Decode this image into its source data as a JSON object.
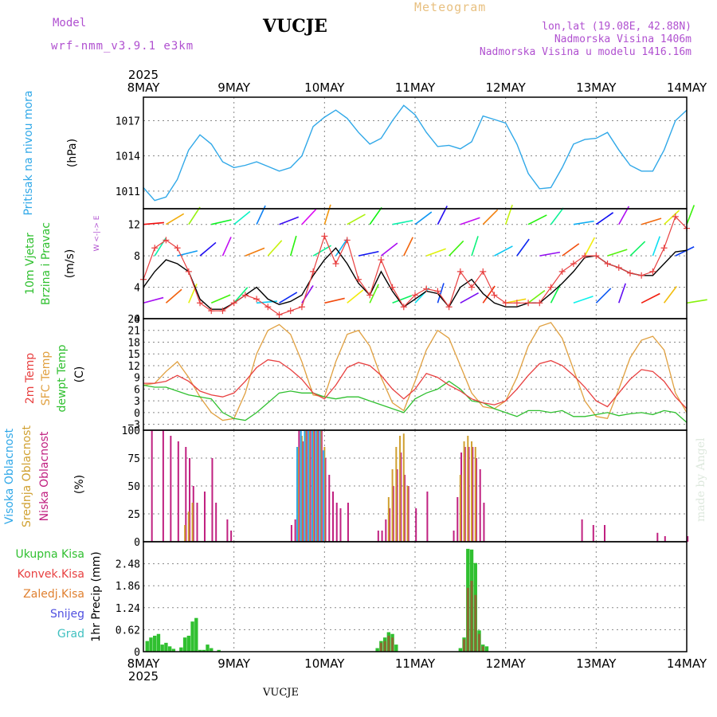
{
  "header": {
    "title": "VUCJE",
    "meteogram_label": "Meteogram",
    "model_label": "Model",
    "model_name": "wrf-nmm_v3.9.1  e3km",
    "lonlat": "lon,lat (19.08E, 42.88N)",
    "altitude": "Nadmorska Visina 1406m",
    "model_altitude": "Nadmorska Visina u modelu 1416.16m"
  },
  "footer": {
    "station": "VUCJE",
    "credit": "made by Angel"
  },
  "colors": {
    "pressure": "#30a8e8",
    "wind_speed": "#000000",
    "gust": "#e84040",
    "temp2m": "#e84040",
    "sfc_temp": "#e0a040",
    "dewpt": "#30c030",
    "cloud_high": "#30a8e8",
    "cloud_mid": "#d0a030",
    "cloud_low": "#c02080",
    "precip_total": "#30c030",
    "precip_conv": "#e84040",
    "precip_large": "#e08030",
    "snow": "#5050e0",
    "hail": "#40c0c0"
  },
  "chart_data": [
    {
      "type": "line",
      "panel": "pressure",
      "title": "Pritisak na nivou mora",
      "ylabel": "(hPa)",
      "year_label": "2025",
      "x_ticks": [
        "8MAY",
        "9MAY",
        "10MAY",
        "11MAY",
        "12MAY",
        "13MAY",
        "14MAY"
      ],
      "ylim": [
        1009.5,
        1019
      ],
      "y_ticks": [
        1011,
        1014,
        1017
      ],
      "x_hours": [
        0,
        3,
        6,
        9,
        12,
        15,
        18,
        21,
        24,
        27,
        30,
        33,
        36,
        39,
        42,
        45,
        48,
        51,
        54,
        57,
        60,
        63,
        66,
        69,
        72,
        75,
        78,
        81,
        84,
        87,
        90,
        93,
        96,
        99,
        102,
        105,
        108,
        111,
        114,
        117,
        120,
        123,
        126,
        129,
        132,
        135,
        138,
        141,
        144
      ],
      "values": [
        1011.3,
        1010.2,
        1010.5,
        1012,
        1014.5,
        1015.8,
        1015,
        1013.5,
        1013,
        1013.2,
        1013.5,
        1013.1,
        1012.7,
        1013,
        1014,
        1016.5,
        1017.3,
        1017.9,
        1017.2,
        1016,
        1015,
        1015.5,
        1017,
        1018.3,
        1017.5,
        1016,
        1014.8,
        1014.9,
        1014.6,
        1015.2,
        1017.4,
        1017.1,
        1016.8,
        1015,
        1012.5,
        1011.2,
        1011.3,
        1013,
        1015,
        1015.4,
        1015.5,
        1016,
        1014.5,
        1013.2,
        1012.7,
        1012.7,
        1014.5,
        1017,
        1017.9
      ]
    },
    {
      "type": "line",
      "panel": "wind",
      "title": "10m Vjetar",
      "subtitle": "Brzina i Pravac",
      "ylabel": "(m/s)",
      "compass_label": "W <-|-> E",
      "ylim": [
        0,
        14
      ],
      "y_ticks": [
        0,
        4,
        8,
        12
      ],
      "x_hours": [
        0,
        3,
        6,
        9,
        12,
        15,
        18,
        21,
        24,
        27,
        30,
        33,
        36,
        39,
        42,
        45,
        48,
        51,
        54,
        57,
        60,
        63,
        66,
        69,
        72,
        75,
        78,
        81,
        84,
        87,
        90,
        93,
        96,
        99,
        102,
        105,
        108,
        111,
        114,
        117,
        120,
        123,
        126,
        129,
        132,
        135,
        138,
        141,
        144
      ],
      "series": [
        {
          "name": "Wind speed",
          "values": [
            4,
            6,
            7.5,
            7,
            6,
            2.5,
            1.2,
            1.2,
            2,
            3,
            4,
            2.5,
            1.8,
            2.2,
            3,
            5.5,
            7.5,
            9,
            7,
            4.5,
            3,
            6,
            3.5,
            1.5,
            2.5,
            3.5,
            3.2,
            1.5,
            4,
            5,
            3.2,
            2,
            1.5,
            1.5,
            2,
            2,
            3.2,
            4.5,
            6,
            7.8,
            8,
            7,
            6.5,
            5.8,
            5.5,
            5.5,
            7,
            8.5,
            8.7
          ]
        },
        {
          "name": "Gust",
          "values": [
            5,
            9,
            10,
            9,
            6,
            2,
            1,
            1,
            2,
            3,
            2.5,
            1.5,
            0.5,
            1,
            1.5,
            6,
            10.5,
            7,
            10,
            5,
            3,
            7.5,
            4,
            1.5,
            3,
            3.8,
            3.5,
            1.5,
            6,
            4,
            6,
            3,
            2,
            2,
            2,
            2,
            4,
            6,
            7,
            8,
            8,
            7,
            6.5,
            5.8,
            5.5,
            6,
            9,
            13,
            11.5
          ]
        }
      ]
    },
    {
      "type": "line",
      "panel": "temperature",
      "title": "2m Temp",
      "subtitle": "SFC Temp",
      "subtitle2": "dewpt Temp",
      "ylabel": "(C)",
      "ylim": [
        -4.5,
        24
      ],
      "y_ticks": [
        -3,
        0,
        3,
        6,
        9,
        12,
        15,
        18,
        21,
        24
      ],
      "x_hours": [
        0,
        3,
        6,
        9,
        12,
        15,
        18,
        21,
        24,
        27,
        30,
        33,
        36,
        39,
        42,
        45,
        48,
        51,
        54,
        57,
        60,
        63,
        66,
        69,
        72,
        75,
        78,
        81,
        84,
        87,
        90,
        93,
        96,
        99,
        102,
        105,
        108,
        111,
        114,
        117,
        120,
        123,
        126,
        129,
        132,
        135,
        138,
        141,
        144
      ],
      "series": [
        {
          "name": "2m Temp",
          "values": [
            7.5,
            7.5,
            8,
            9.5,
            8,
            5.5,
            4.5,
            4,
            5,
            8,
            11.5,
            13.5,
            13,
            11,
            8.5,
            5,
            3.5,
            7,
            11.5,
            12.8,
            12,
            9.5,
            6,
            3.5,
            6,
            10,
            9,
            7,
            5.5,
            3.5,
            2.5,
            2,
            3,
            6,
            9.5,
            12.5,
            13.3,
            12,
            9.5,
            6.5,
            3,
            1.5,
            5,
            8.5,
            11,
            10.5,
            8,
            4,
            1
          ]
        },
        {
          "name": "SFC Temp",
          "values": [
            7,
            7.5,
            10.5,
            13,
            9,
            4,
            0,
            -2,
            -1.5,
            5,
            15,
            21,
            22.5,
            20,
            13,
            4.5,
            4,
            13,
            20,
            21,
            17,
            9,
            2.5,
            0.5,
            8,
            16,
            21,
            19,
            12,
            5,
            1.5,
            1,
            3,
            9,
            17,
            22,
            23,
            19,
            11,
            3,
            -1,
            -1.5,
            6,
            14,
            18.5,
            19.5,
            16,
            5,
            0
          ]
        },
        {
          "name": "dewpt Temp",
          "values": [
            7,
            6.5,
            6.5,
            5.5,
            4.5,
            4,
            3.5,
            0,
            -1.5,
            -2,
            0,
            2.5,
            5,
            5.5,
            5,
            5,
            4,
            3.5,
            4,
            4,
            3,
            2,
            1,
            0,
            3.5,
            5,
            6,
            8,
            6,
            3,
            2.5,
            1,
            0,
            -1,
            0.5,
            0.5,
            0,
            0.5,
            -1,
            -1,
            -0.5,
            0,
            -0.8,
            -0.3,
            0,
            -0.5,
            0.5,
            0,
            -2.5
          ]
        }
      ]
    },
    {
      "type": "bar",
      "panel": "clouds",
      "title": "Visoka Oblacnost",
      "subtitle": "Srednja Oblacnost",
      "subtitle2": "Niska Oblacnost",
      "ylabel": "(%)",
      "ylim": [
        0,
        100
      ],
      "y_ticks": [
        0,
        25,
        50,
        75,
        100
      ],
      "series": [
        {
          "name": "Niska Oblacnost",
          "points": [
            [
              2,
              100
            ],
            [
              5,
              100
            ],
            [
              7,
              95
            ],
            [
              9,
              90
            ],
            [
              11,
              85
            ],
            [
              12,
              75
            ],
            [
              13,
              50
            ],
            [
              14,
              35
            ],
            [
              16,
              45
            ],
            [
              18,
              75
            ],
            [
              19,
              35
            ],
            [
              22,
              20
            ],
            [
              23,
              10
            ],
            [
              39,
              15
            ],
            [
              40,
              20
            ],
            [
              41,
              100
            ],
            [
              42,
              90
            ],
            [
              43,
              100
            ],
            [
              44,
              100
            ],
            [
              45,
              100
            ],
            [
              46,
              100
            ],
            [
              47,
              100
            ],
            [
              48,
              75
            ],
            [
              49,
              60
            ],
            [
              50,
              45
            ],
            [
              51,
              35
            ],
            [
              52,
              30
            ],
            [
              54,
              35
            ],
            [
              62,
              10
            ],
            [
              63,
              10
            ],
            [
              64,
              20
            ],
            [
              65,
              30
            ],
            [
              66,
              50
            ],
            [
              67,
              65
            ],
            [
              68,
              80
            ],
            [
              69,
              60
            ],
            [
              70,
              50
            ],
            [
              72,
              30
            ],
            [
              75,
              45
            ],
            [
              82,
              10
            ],
            [
              83,
              40
            ],
            [
              84,
              80
            ],
            [
              85,
              85
            ],
            [
              86,
              85
            ],
            [
              87,
              85
            ],
            [
              88,
              75
            ],
            [
              89,
              65
            ],
            [
              90,
              35
            ],
            [
              116,
              20
            ],
            [
              119,
              15
            ],
            [
              122,
              15
            ],
            [
              136,
              8
            ],
            [
              138,
              5
            ],
            [
              144,
              5
            ]
          ]
        },
        {
          "name": "Srednja Oblacnost",
          "points": [
            [
              11,
              15
            ],
            [
              12,
              27
            ],
            [
              13,
              35
            ],
            [
              41,
              85
            ],
            [
              42,
              95
            ],
            [
              43,
              100
            ],
            [
              44,
              100
            ],
            [
              45,
              100
            ],
            [
              46,
              100
            ],
            [
              47,
              100
            ],
            [
              48,
              85
            ],
            [
              65,
              40
            ],
            [
              66,
              65
            ],
            [
              67,
              85
            ],
            [
              68,
              95
            ],
            [
              69,
              97
            ],
            [
              70,
              50
            ],
            [
              84,
              60
            ],
            [
              85,
              90
            ],
            [
              86,
              95
            ],
            [
              87,
              90
            ],
            [
              88,
              85
            ]
          ]
        },
        {
          "name": "Visoka Oblacnost",
          "points": [
            [
              41,
              85
            ],
            [
              42,
              100
            ],
            [
              43,
              100
            ],
            [
              44,
              100
            ],
            [
              45,
              100
            ],
            [
              46,
              100
            ],
            [
              47,
              100
            ],
            [
              48,
              82
            ]
          ]
        }
      ]
    },
    {
      "type": "bar",
      "panel": "precipitation",
      "title": "Ukupna Kisa",
      "subtitle": "Konvek.Kisa",
      "subtitle2": "Zaledj.Kisa",
      "subtitle3": "Snijeg",
      "subtitle4": "Grad",
      "ylabel": "1hr Precip (mm)",
      "ylim": [
        0,
        3.1
      ],
      "y_ticks": [
        0,
        0.62,
        1.24,
        1.86,
        2.48
      ],
      "year_label": "2025",
      "x_ticks": [
        "8MAY",
        "9MAY",
        "10MAY",
        "11MAY",
        "12MAY",
        "13MAY",
        "14MAY"
      ],
      "series": [
        {
          "name": "Ukupna Kisa",
          "points": [
            [
              1,
              0.3
            ],
            [
              2,
              0.4
            ],
            [
              3,
              0.45
            ],
            [
              4,
              0.5
            ],
            [
              5,
              0.2
            ],
            [
              6,
              0.25
            ],
            [
              7,
              0.15
            ],
            [
              8,
              0.08
            ],
            [
              10,
              0.12
            ],
            [
              11,
              0.4
            ],
            [
              12,
              0.45
            ],
            [
              13,
              0.85
            ],
            [
              14,
              0.95
            ],
            [
              15,
              0.05
            ],
            [
              16,
              0.05
            ],
            [
              17,
              0.2
            ],
            [
              18,
              0.1
            ],
            [
              20,
              0.05
            ],
            [
              62,
              0.1
            ],
            [
              63,
              0.3
            ],
            [
              64,
              0.4
            ],
            [
              65,
              0.55
            ],
            [
              66,
              0.5
            ],
            [
              67,
              0.2
            ],
            [
              84,
              0.1
            ],
            [
              85,
              0.4
            ],
            [
              86,
              2.9
            ],
            [
              87,
              2.88
            ],
            [
              88,
              2.5
            ],
            [
              89,
              0.6
            ],
            [
              90,
              0.2
            ],
            [
              91,
              0.15
            ]
          ]
        },
        {
          "name": "Konvek.Kisa",
          "points": [
            [
              63,
              0.25
            ],
            [
              64,
              0.3
            ],
            [
              65,
              0.45
            ],
            [
              66,
              0.4
            ],
            [
              85,
              0.35
            ],
            [
              86,
              1.8
            ],
            [
              87,
              2.0
            ],
            [
              88,
              1.6
            ],
            [
              89,
              0.5
            ],
            [
              90,
              0.15
            ]
          ]
        }
      ]
    }
  ]
}
